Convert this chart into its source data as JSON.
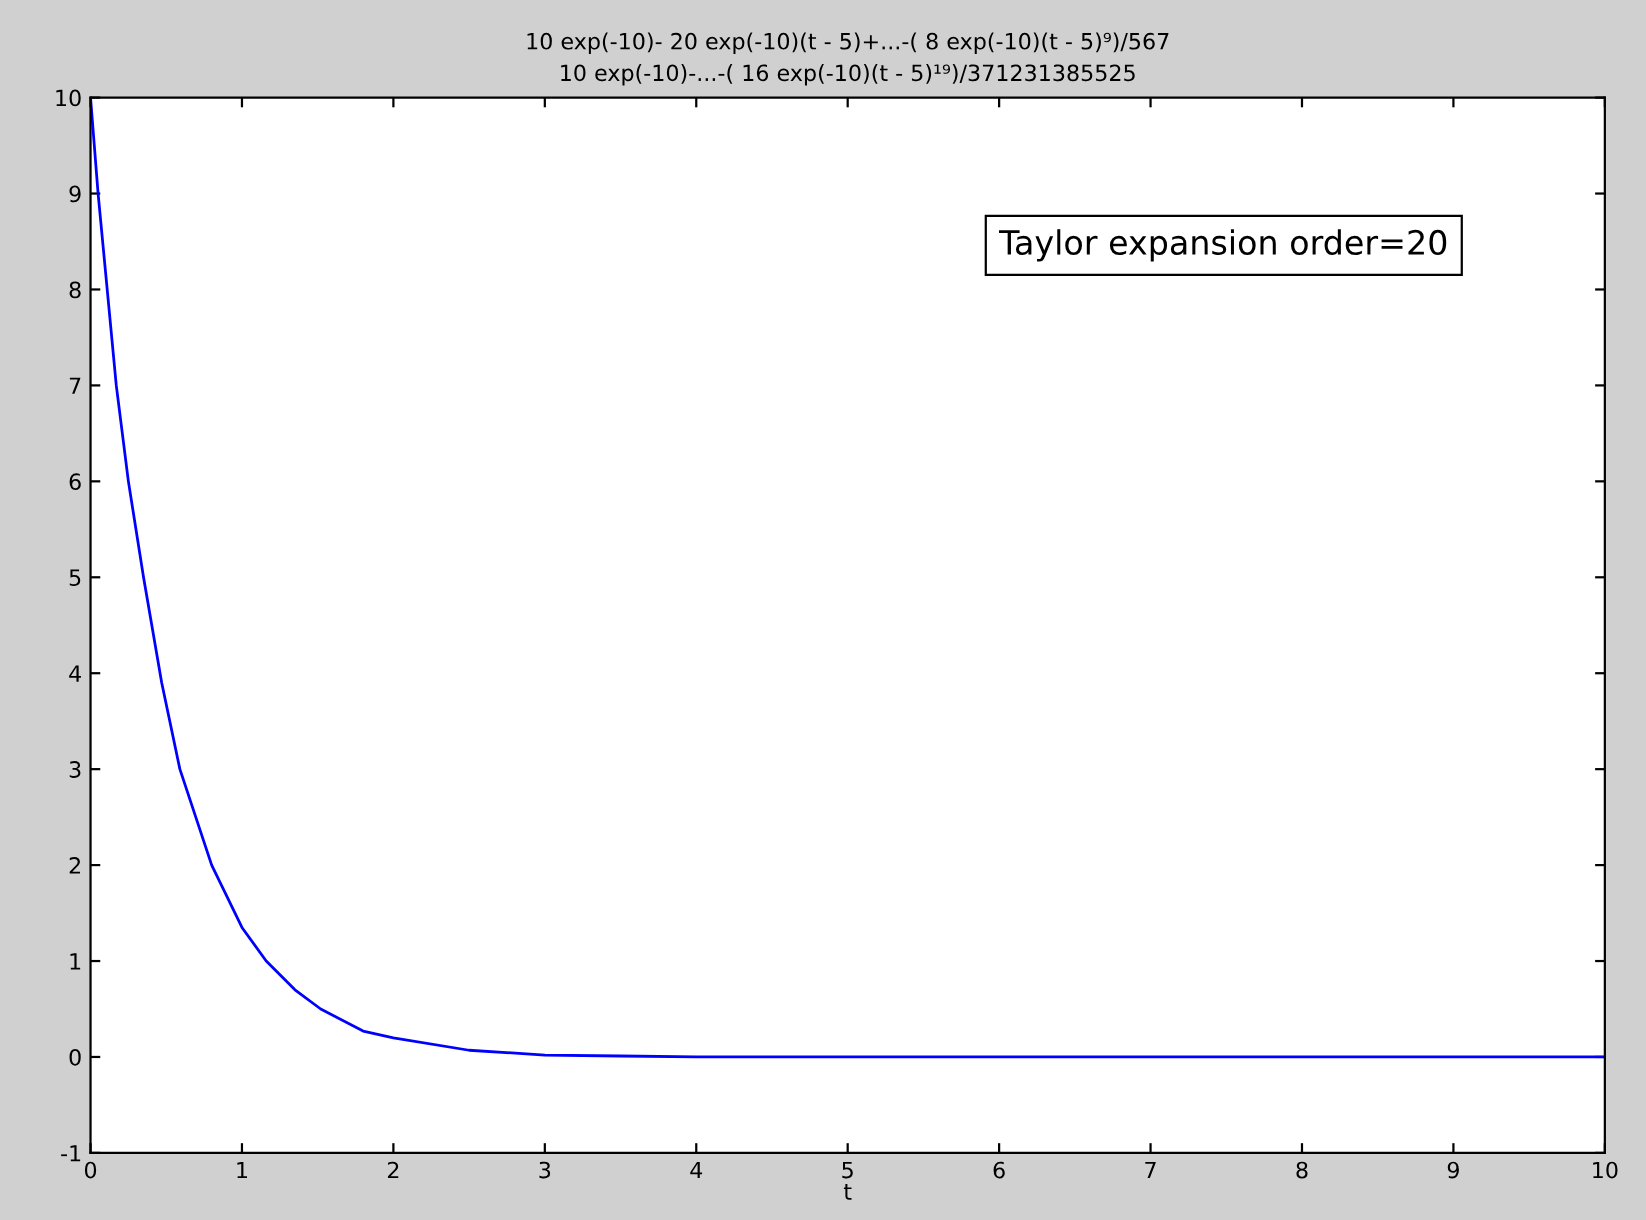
{
  "chart_data": {
    "type": "line",
    "title": "10 exp(-10)- 20 exp(-10)(t - 5)+...-( 8 exp(-10)(t - 5)⁹)/567\n10 exp(-10)-...-( 16 exp(-10)(t - 5)¹⁹)/371231385525",
    "xlabel": "t",
    "x": [
      0,
      0.05,
      0.11,
      0.17,
      0.25,
      0.35,
      0.47,
      0.59,
      0.8,
      1.0,
      1.16,
      1.35,
      1.52,
      1.8,
      2.0,
      2.5,
      3.0,
      3.5,
      4,
      5,
      6,
      7,
      8,
      9,
      10
    ],
    "series": [
      {
        "color": "#0000ff",
        "values": [
          10,
          9.0,
          8.0,
          7.0,
          6.0,
          5.0,
          3.9,
          3.0,
          2.0,
          1.35,
          1.0,
          0.7,
          0.5,
          0.27,
          0.2,
          0.07,
          0.02,
          0.01,
          0,
          0,
          0,
          0,
          0,
          0,
          0
        ]
      }
    ],
    "xlim": [
      0,
      10
    ],
    "ylim": [
      -1,
      10
    ],
    "xticks": [
      0,
      1,
      2,
      3,
      4,
      5,
      6,
      7,
      8,
      9,
      10
    ],
    "yticks": [
      -1,
      0,
      1,
      2,
      3,
      4,
      5,
      6,
      7,
      8,
      9,
      10
    ],
    "annotations": [
      "Taylor expansion order=20"
    ],
    "grid": false,
    "legend": false,
    "marker": "none",
    "line_style": "solid"
  }
}
